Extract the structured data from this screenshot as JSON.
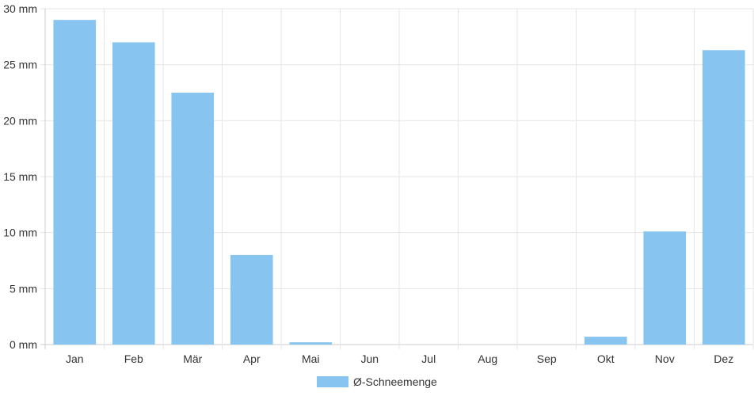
{
  "chart_data": {
    "type": "bar",
    "categories": [
      "Jan",
      "Feb",
      "Mär",
      "Apr",
      "Mai",
      "Jun",
      "Jul",
      "Aug",
      "Sep",
      "Okt",
      "Nov",
      "Dez"
    ],
    "series": [
      {
        "name": "Ø-Schneemenge",
        "values": [
          29.0,
          27.0,
          22.5,
          8.0,
          0.2,
          0.0,
          0.0,
          0.0,
          0.0,
          0.7,
          10.1,
          26.3
        ],
        "color": "#88c4f0"
      }
    ],
    "title": "",
    "xlabel": "",
    "ylabel": "",
    "ylim": [
      0,
      30
    ],
    "y_ticks": [
      0,
      5,
      10,
      15,
      20,
      25,
      30
    ],
    "y_tick_labels": [
      "0 mm",
      "5 mm",
      "10 mm",
      "15 mm",
      "20 mm",
      "25 mm",
      "30 mm"
    ],
    "grid": true,
    "legend_position": "bottom"
  }
}
